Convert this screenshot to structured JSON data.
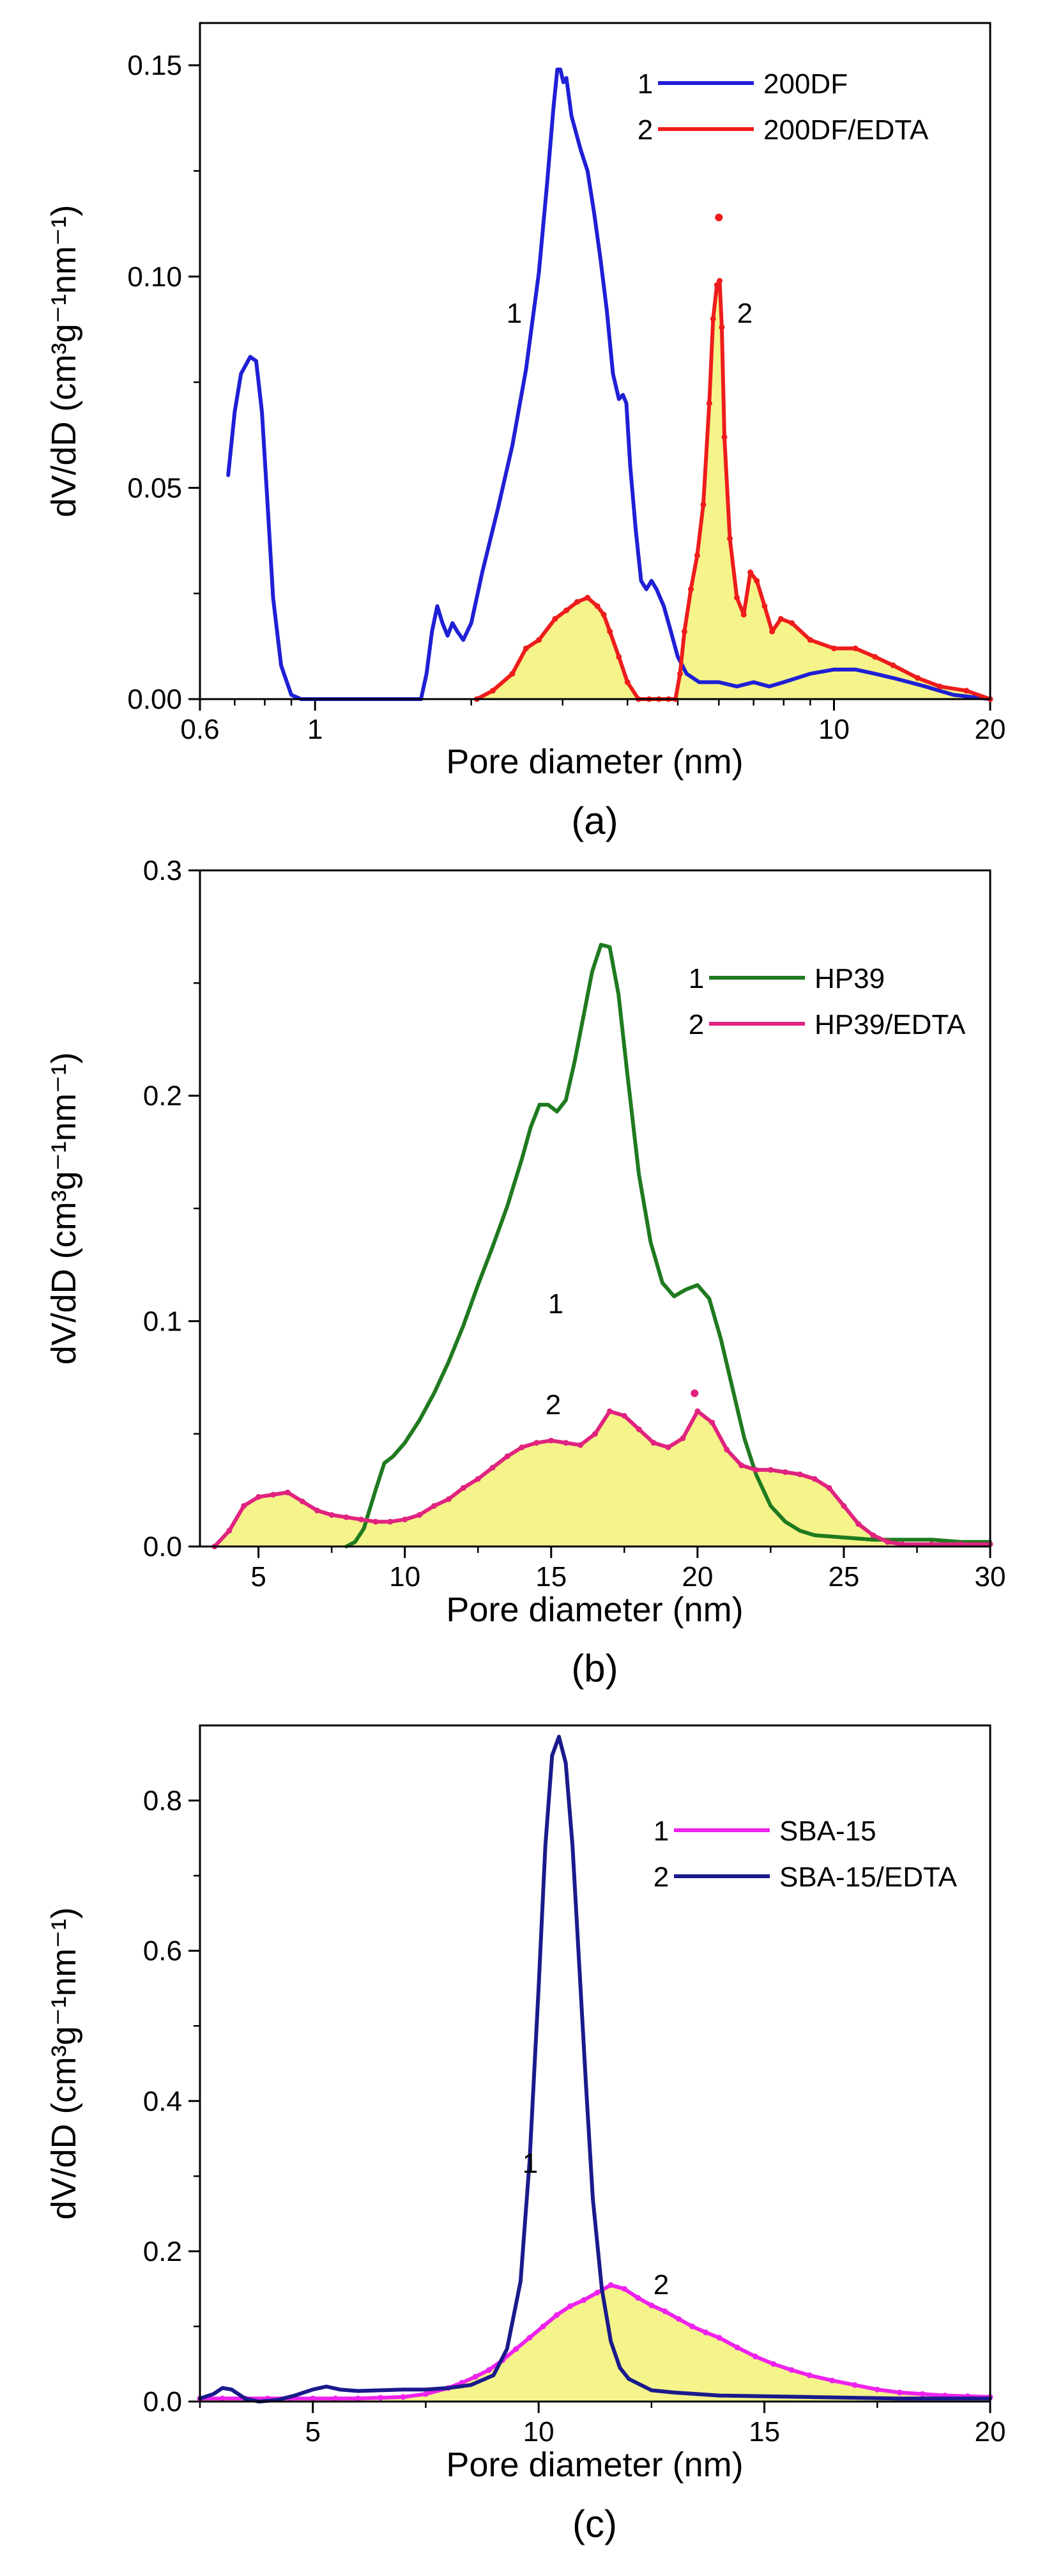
{
  "chart_data": [
    {
      "type": "line",
      "panel": "(a)",
      "xscale": "log",
      "xlabel": "Pore  diameter  (nm)",
      "ylabel": "dV/dD  (cm³g⁻¹nm⁻¹)",
      "xlim": [
        0.6,
        20
      ],
      "ylim": [
        0,
        0.16
      ],
      "xticks": [
        {
          "v": 0.6,
          "label": "0.6"
        },
        {
          "v": 1,
          "label": "1"
        },
        {
          "v": 10,
          "label": "10"
        },
        {
          "v": 20,
          "label": "20"
        }
      ],
      "yticks": [
        {
          "v": 0.0,
          "label": "0.00"
        },
        {
          "v": 0.05,
          "label": "0.05"
        },
        {
          "v": 0.1,
          "label": "0.10"
        },
        {
          "v": 0.15,
          "label": "0.15"
        }
      ],
      "legend": {
        "position": "top-right",
        "entries": [
          {
            "num": "1",
            "name": "200DF"
          },
          {
            "num": "2",
            "name": "200DF/EDTA"
          }
        ]
      },
      "annotations": [
        {
          "text": "1",
          "x": 2.65,
          "y": 0.091
        },
        {
          "text": "2",
          "x": 6.55,
          "y": 0.091
        }
      ],
      "series": [
        {
          "name": "200DF",
          "color": "#1f1fd6",
          "markers": false,
          "fill": false,
          "x": [
            0.68,
            0.7,
            0.72,
            0.75,
            0.77,
            0.79,
            0.81,
            0.83,
            0.86,
            0.9,
            0.94,
            0.97,
            1.0,
            1.6,
            1.64,
            1.68,
            1.72,
            1.76,
            1.8,
            1.84,
            1.88,
            1.93,
            2.0,
            2.1,
            2.25,
            2.4,
            2.55,
            2.7,
            2.8,
            2.88,
            2.93,
            2.97,
            3.01,
            3.05,
            3.12,
            3.25,
            3.35,
            3.45,
            3.55,
            3.65,
            3.75,
            3.85,
            3.92,
            3.98,
            4.05,
            4.15,
            4.25,
            4.35,
            4.45,
            4.55,
            4.7,
            4.85,
            5.0,
            5.2,
            5.5,
            6.0,
            6.5,
            7.0,
            7.5,
            8.0,
            9.0,
            10.0,
            11.0,
            12.0,
            13.0,
            15.0,
            17.0,
            20.0
          ],
          "y": [
            0.053,
            0.068,
            0.077,
            0.081,
            0.08,
            0.068,
            0.046,
            0.024,
            0.008,
            0.001,
            0.0,
            0.0,
            0.0,
            0.0,
            0.006,
            0.016,
            0.022,
            0.018,
            0.015,
            0.018,
            0.016,
            0.014,
            0.018,
            0.03,
            0.045,
            0.06,
            0.078,
            0.101,
            0.122,
            0.14,
            0.149,
            0.149,
            0.146,
            0.147,
            0.138,
            0.13,
            0.125,
            0.115,
            0.104,
            0.092,
            0.077,
            0.071,
            0.072,
            0.07,
            0.055,
            0.04,
            0.028,
            0.026,
            0.028,
            0.026,
            0.022,
            0.016,
            0.01,
            0.006,
            0.004,
            0.004,
            0.003,
            0.004,
            0.003,
            0.004,
            0.006,
            0.007,
            0.007,
            0.006,
            0.005,
            0.003,
            0.001,
            0.0
          ]
        },
        {
          "name": "200DF/EDTA",
          "color": "#ee1c1c",
          "markers": true,
          "fill": true,
          "x": [
            2.05,
            2.2,
            2.4,
            2.55,
            2.7,
            2.9,
            3.05,
            3.2,
            3.35,
            3.5,
            3.6,
            3.7,
            3.85,
            4.0,
            4.2,
            4.4,
            4.6,
            4.8,
            4.95,
            5.05,
            5.15,
            5.3,
            5.45,
            5.6,
            5.75,
            5.85,
            5.95,
            6.02,
            6.08,
            6.15,
            6.3,
            6.5,
            6.7,
            6.9,
            7.1,
            7.35,
            7.6,
            7.9,
            8.3,
            9.0,
            10.0,
            11.0,
            12.0,
            13.0,
            14.5,
            16.0,
            18.0,
            20.0
          ],
          "y": [
            0.0,
            0.002,
            0.006,
            0.012,
            0.014,
            0.019,
            0.021,
            0.023,
            0.024,
            0.022,
            0.02,
            0.016,
            0.01,
            0.004,
            0.0,
            0.0,
            0.0,
            0.0,
            0.0,
            0.006,
            0.016,
            0.026,
            0.034,
            0.046,
            0.07,
            0.09,
            0.098,
            0.099,
            0.088,
            0.062,
            0.038,
            0.024,
            0.02,
            0.03,
            0.028,
            0.022,
            0.016,
            0.019,
            0.018,
            0.014,
            0.012,
            0.012,
            0.01,
            0.008,
            0.005,
            0.003,
            0.002,
            0.0
          ]
        }
      ],
      "outliers": [
        {
          "x": 6.0,
          "y": 0.114,
          "color": "#ee1c1c"
        }
      ]
    },
    {
      "type": "line",
      "panel": "(b)",
      "xscale": "linear",
      "xlabel": "Pore  diameter  (nm)",
      "ylabel": "dV/dD  (cm³g⁻¹nm⁻¹)",
      "xlim": [
        3,
        30
      ],
      "ylim": [
        0,
        0.3
      ],
      "xticks": [
        {
          "v": 5,
          "label": "5"
        },
        {
          "v": 10,
          "label": "10"
        },
        {
          "v": 15,
          "label": "15"
        },
        {
          "v": 20,
          "label": "20"
        },
        {
          "v": 25,
          "label": "25"
        },
        {
          "v": 30,
          "label": "30"
        }
      ],
      "yticks": [
        {
          "v": 0.0,
          "label": "0.0"
        },
        {
          "v": 0.1,
          "label": "0.1"
        },
        {
          "v": 0.2,
          "label": "0.2"
        },
        {
          "v": 0.3,
          "label": "0.3"
        }
      ],
      "legend": {
        "position": "top-right",
        "entries": [
          {
            "num": "1",
            "name": "HP39"
          },
          {
            "num": "2",
            "name": "HP39/EDTA"
          }
        ]
      },
      "annotations": [
        {
          "text": "1",
          "x": 14.1,
          "y": 0.206
        },
        {
          "text": "2",
          "x": 14.5,
          "y": 0.06
        }
      ],
      "series": [
        {
          "name": "HP39",
          "color": "#1f7a1f",
          "markers": false,
          "fill": false,
          "x": [
            8.0,
            8.3,
            8.6,
            9.0,
            9.3,
            9.6,
            10.0,
            10.5,
            11.0,
            11.5,
            12.0,
            12.5,
            13.0,
            13.5,
            14.0,
            14.3,
            14.6,
            14.9,
            15.2,
            15.5,
            15.8,
            16.1,
            16.4,
            16.7,
            17.0,
            17.3,
            17.6,
            18.0,
            18.4,
            18.8,
            19.2,
            19.6,
            20.0,
            20.4,
            20.8,
            21.2,
            21.6,
            22.0,
            22.5,
            23.0,
            23.5,
            24.0,
            25.0,
            26.0,
            27.0,
            28.0,
            29.0,
            30.0
          ],
          "y": [
            0.0,
            0.002,
            0.008,
            0.025,
            0.037,
            0.04,
            0.046,
            0.056,
            0.068,
            0.082,
            0.098,
            0.116,
            0.133,
            0.151,
            0.172,
            0.186,
            0.196,
            0.196,
            0.193,
            0.198,
            0.215,
            0.235,
            0.255,
            0.267,
            0.266,
            0.245,
            0.21,
            0.165,
            0.135,
            0.117,
            0.111,
            0.114,
            0.116,
            0.11,
            0.092,
            0.07,
            0.048,
            0.032,
            0.018,
            0.011,
            0.007,
            0.005,
            0.004,
            0.003,
            0.003,
            0.003,
            0.002,
            0.002
          ]
        },
        {
          "name": "HP39/EDTA",
          "color": "#e0237f",
          "markers": true,
          "fill": true,
          "x": [
            3.5,
            4.0,
            4.5,
            5.0,
            5.5,
            6.0,
            6.5,
            7.0,
            7.5,
            8.0,
            8.5,
            9.0,
            9.5,
            10.0,
            10.5,
            11.0,
            11.5,
            12.0,
            12.5,
            13.0,
            13.5,
            14.0,
            14.5,
            15.0,
            15.5,
            16.0,
            16.5,
            17.0,
            17.5,
            18.0,
            18.5,
            19.0,
            19.5,
            20.0,
            20.5,
            21.0,
            21.5,
            22.0,
            22.5,
            23.0,
            23.5,
            24.0,
            24.5,
            25.0,
            25.5,
            26.0,
            26.5,
            27.0,
            28.0,
            29.0,
            30.0
          ],
          "y": [
            0.0,
            0.007,
            0.018,
            0.022,
            0.023,
            0.024,
            0.02,
            0.016,
            0.014,
            0.013,
            0.012,
            0.011,
            0.011,
            0.012,
            0.014,
            0.018,
            0.021,
            0.026,
            0.03,
            0.035,
            0.04,
            0.044,
            0.046,
            0.047,
            0.046,
            0.045,
            0.05,
            0.06,
            0.058,
            0.052,
            0.046,
            0.044,
            0.048,
            0.06,
            0.055,
            0.043,
            0.036,
            0.034,
            0.034,
            0.033,
            0.032,
            0.03,
            0.026,
            0.018,
            0.01,
            0.005,
            0.002,
            0.001,
            0.001,
            0.001,
            0.001
          ]
        }
      ],
      "outliers": [
        {
          "x": 19.9,
          "y": 0.068,
          "color": "#e0237f"
        }
      ]
    },
    {
      "type": "line",
      "panel": "(c)",
      "xscale": "linear",
      "xlabel": "Pore  diameter  (nm)",
      "ylabel": "dV/dD  (cm³g⁻¹nm⁻¹)",
      "xlim": [
        2.5,
        20
      ],
      "ylim": [
        0,
        0.9
      ],
      "xticks": [
        {
          "v": 5,
          "label": "5"
        },
        {
          "v": 10,
          "label": "10"
        },
        {
          "v": 15,
          "label": "15"
        },
        {
          "v": 20,
          "label": "20"
        }
      ],
      "yticks": [
        {
          "v": 0.0,
          "label": "0.0"
        },
        {
          "v": 0.2,
          "label": "0.2"
        },
        {
          "v": 0.4,
          "label": "0.4"
        },
        {
          "v": 0.6,
          "label": "0.6"
        },
        {
          "v": 0.8,
          "label": "0.8"
        }
      ],
      "legend": {
        "position": "top-right",
        "entries": [
          {
            "num": "1",
            "name": "SBA-15"
          },
          {
            "num": "2",
            "name": "SBA-15/EDTA"
          }
        ]
      },
      "annotations": [
        {
          "text": "1",
          "x": 9.85,
          "y": 0.6
        },
        {
          "text": "2",
          "x": 12.2,
          "y": 0.16
        }
      ],
      "series": [
        {
          "name": "SBA-15",
          "color": "#ee22ee",
          "markers": true,
          "fill": true,
          "x": [
            2.5,
            3.0,
            3.5,
            4.0,
            4.5,
            5.0,
            5.5,
            6.0,
            6.5,
            7.0,
            7.5,
            8.0,
            8.3,
            8.6,
            8.9,
            9.2,
            9.5,
            9.8,
            10.1,
            10.4,
            10.7,
            11.0,
            11.3,
            11.6,
            11.9,
            12.2,
            12.5,
            12.8,
            13.1,
            13.4,
            13.7,
            14.0,
            14.4,
            14.8,
            15.2,
            15.6,
            16.0,
            16.5,
            17.0,
            17.5,
            18.0,
            18.5,
            19.0,
            19.5,
            20.0
          ],
          "y": [
            0.004,
            0.004,
            0.004,
            0.004,
            0.004,
            0.004,
            0.004,
            0.004,
            0.005,
            0.006,
            0.01,
            0.018,
            0.025,
            0.033,
            0.042,
            0.055,
            0.07,
            0.085,
            0.1,
            0.115,
            0.127,
            0.135,
            0.145,
            0.155,
            0.15,
            0.138,
            0.128,
            0.12,
            0.11,
            0.1,
            0.092,
            0.085,
            0.072,
            0.06,
            0.05,
            0.042,
            0.035,
            0.028,
            0.022,
            0.016,
            0.012,
            0.01,
            0.008,
            0.007,
            0.006
          ]
        },
        {
          "name": "SBA-15/EDTA",
          "color": "#1a1a8c",
          "markers": false,
          "fill": false,
          "x": [
            2.5,
            2.8,
            3.0,
            3.2,
            3.5,
            3.8,
            4.2,
            4.6,
            5.0,
            5.3,
            5.6,
            6.0,
            7.0,
            7.5,
            8.0,
            8.5,
            9.0,
            9.3,
            9.6,
            9.8,
            10.0,
            10.15,
            10.3,
            10.45,
            10.6,
            10.75,
            10.9,
            11.05,
            11.2,
            11.4,
            11.6,
            11.8,
            12.0,
            12.5,
            13.0,
            14.0,
            15.0,
            16.0,
            18.0,
            20.0
          ],
          "y": [
            0.004,
            0.01,
            0.018,
            0.016,
            0.004,
            0.0,
            0.002,
            0.008,
            0.016,
            0.02,
            0.016,
            0.014,
            0.016,
            0.016,
            0.018,
            0.022,
            0.035,
            0.07,
            0.16,
            0.32,
            0.55,
            0.74,
            0.86,
            0.885,
            0.85,
            0.74,
            0.58,
            0.42,
            0.27,
            0.15,
            0.08,
            0.045,
            0.03,
            0.015,
            0.012,
            0.008,
            0.007,
            0.006,
            0.004,
            0.004
          ]
        }
      ],
      "outliers": []
    }
  ]
}
